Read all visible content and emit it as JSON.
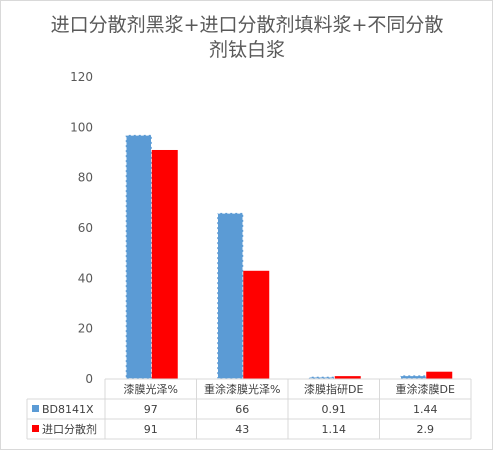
{
  "chart_data": {
    "type": "bar",
    "title": "进口分散剂黑浆+进口分散剂填料浆+不同分散剂钛白浆",
    "title_lines": [
      "进口分散剂黑浆+进口分散剂填料浆+不同分散",
      "剂钛白浆"
    ],
    "categories": [
      "漆膜光泽%",
      "重涂漆膜光泽%",
      "漆膜指研DE",
      "重涂漆膜DE"
    ],
    "series": [
      {
        "name": "BD8141X",
        "values": [
          97,
          66,
          0.91,
          1.44
        ],
        "labels": [
          "97",
          "66",
          "0.91",
          "1.44"
        ],
        "color": "#5b9bd5",
        "edge": "#ffffff"
      },
      {
        "name": "进口分散剂",
        "values": [
          91,
          43,
          1.14,
          2.9
        ],
        "labels": [
          "91",
          "43",
          "1.14",
          "2.9"
        ],
        "color": "#ff0000",
        "edge": "#c00000"
      }
    ],
    "ylim": [
      0,
      120
    ],
    "yticks": [
      "0",
      "20",
      "40",
      "60",
      "80",
      "100",
      "120"
    ],
    "xlabel": "",
    "ylabel": "",
    "grid": false,
    "legend": "data-table"
  }
}
